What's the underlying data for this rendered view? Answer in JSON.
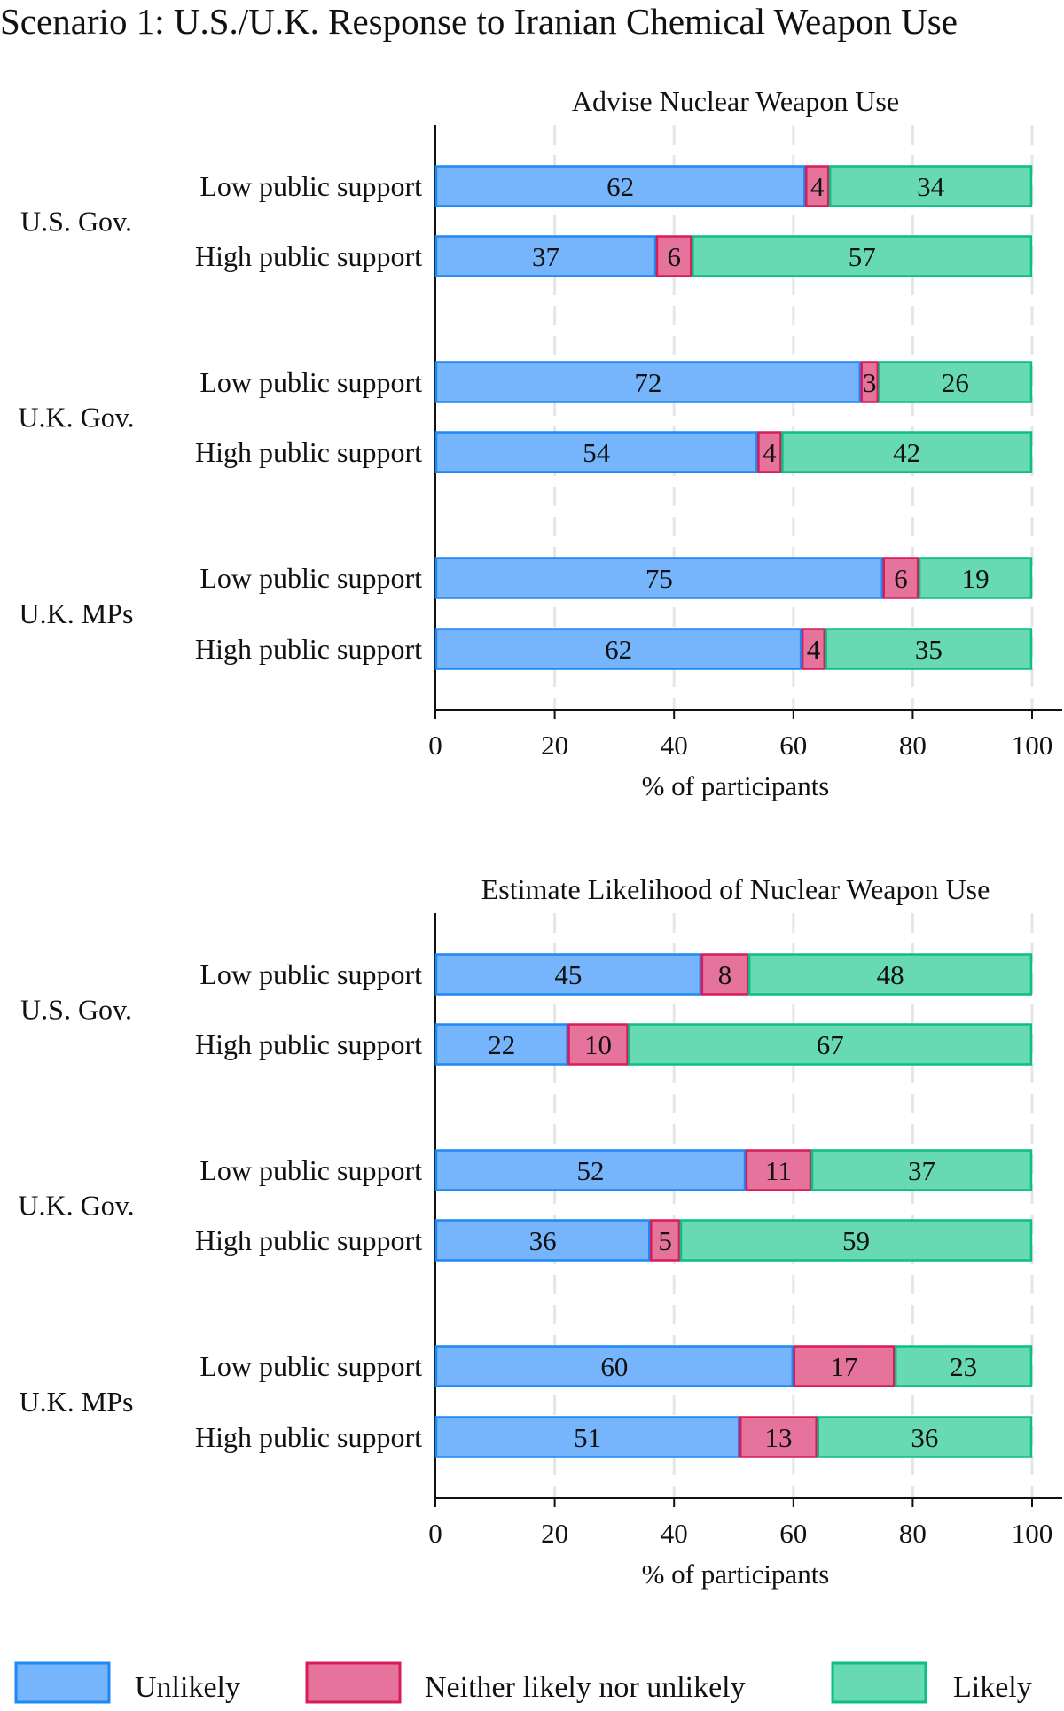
{
  "title": "Scenario 1: U.S./U.K. Response to Iranian Chemical Weapon Use",
  "colors": {
    "Unlikely": {
      "fill": "#76b5fb",
      "stroke": "#1e88f5"
    },
    "Neither likely nor unlikely": {
      "fill": "#e5739b",
      "stroke": "#d81b5a"
    },
    "Likely": {
      "fill": "#67d9b3",
      "stroke": "#0cbf7e"
    }
  },
  "legend": [
    "Unlikely",
    "Neither likely nor unlikely",
    "Likely"
  ],
  "chart_data": [
    {
      "type": "bar",
      "orientation": "horizontal-stacked",
      "title": "Advise Nuclear Weapon Use",
      "xlabel": "% of participants",
      "xlim": [
        0,
        100
      ],
      "xticks": [
        "0",
        "20",
        "40",
        "60",
        "80",
        "100"
      ],
      "grid": "vertical dashed",
      "groups": [
        {
          "name": "U.S. Gov.",
          "rows": [
            {
              "label": "Low public support",
              "values": [
                62,
                4,
                34
              ]
            },
            {
              "label": "High public support",
              "values": [
                37,
                6,
                57
              ]
            }
          ]
        },
        {
          "name": "U.K. Gov.",
          "rows": [
            {
              "label": "Low public support",
              "values": [
                72,
                3,
                26
              ]
            },
            {
              "label": "High public support",
              "values": [
                54,
                4,
                42
              ]
            }
          ]
        },
        {
          "name": "U.K. MPs",
          "rows": [
            {
              "label": "Low public support",
              "values": [
                75,
                6,
                19
              ]
            },
            {
              "label": "High public support",
              "values": [
                62,
                4,
                35
              ]
            }
          ]
        }
      ],
      "series": [
        "Unlikely",
        "Neither likely nor unlikely",
        "Likely"
      ]
    },
    {
      "type": "bar",
      "orientation": "horizontal-stacked",
      "title": "Estimate Likelihood of Nuclear Weapon Use",
      "xlabel": "% of participants",
      "xlim": [
        0,
        100
      ],
      "xticks": [
        "0",
        "20",
        "40",
        "60",
        "80",
        "100"
      ],
      "grid": "vertical dashed",
      "groups": [
        {
          "name": "U.S. Gov.",
          "rows": [
            {
              "label": "Low public support",
              "values": [
                45,
                8,
                48
              ]
            },
            {
              "label": "High public support",
              "values": [
                22,
                10,
                67
              ]
            }
          ]
        },
        {
          "name": "U.K. Gov.",
          "rows": [
            {
              "label": "Low public support",
              "values": [
                52,
                11,
                37
              ]
            },
            {
              "label": "High public support",
              "values": [
                36,
                5,
                59
              ]
            }
          ]
        },
        {
          "name": "U.K. MPs",
          "rows": [
            {
              "label": "Low public support",
              "values": [
                60,
                17,
                23
              ]
            },
            {
              "label": "High public support",
              "values": [
                51,
                13,
                36
              ]
            }
          ]
        }
      ],
      "series": [
        "Unlikely",
        "Neither likely nor unlikely",
        "Likely"
      ]
    }
  ]
}
